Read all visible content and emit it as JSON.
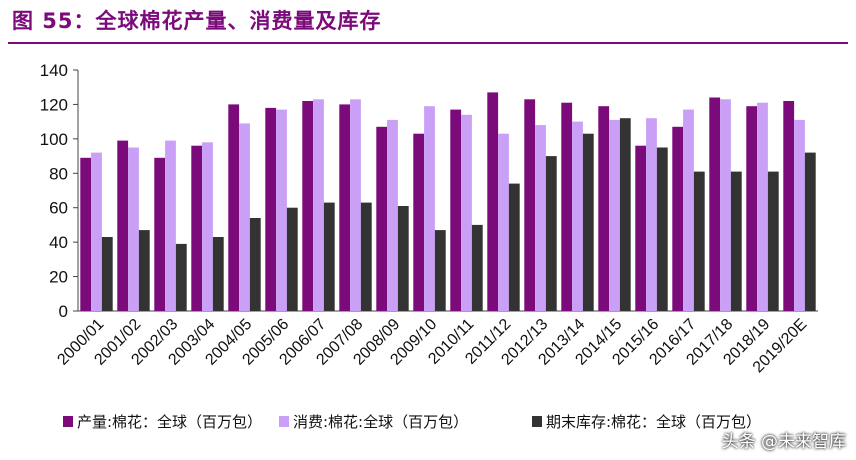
{
  "header": {
    "title": "图 55：全球棉花产量、消费量及库存"
  },
  "chart_data": {
    "type": "bar",
    "categories": [
      "2000/01",
      "2001/02",
      "2002/03",
      "2003/04",
      "2004/05",
      "2005/06",
      "2006/07",
      "2007/08",
      "2008/09",
      "2009/10",
      "2010/11",
      "2011/12",
      "2012/13",
      "2013/14",
      "2014/15",
      "2015/16",
      "2016/17",
      "2017/18",
      "2018/19",
      "2019/20E"
    ],
    "series": [
      {
        "name": "产量:棉花：全球（百万包）",
        "color": "#7b0a7a",
        "values": [
          89,
          99,
          89,
          96,
          120,
          118,
          122,
          120,
          107,
          103,
          117,
          127,
          123,
          121,
          119,
          96,
          107,
          124,
          119,
          122
        ]
      },
      {
        "name": "消费:棉花:全球（百万包）",
        "color": "#c9a0f5",
        "values": [
          92,
          95,
          99,
          98,
          109,
          117,
          123,
          123,
          111,
          119,
          114,
          103,
          108,
          110,
          111,
          112,
          117,
          123,
          121,
          111
        ]
      },
      {
        "name": "期末库存:棉花：全球（百万包）",
        "color": "#333333",
        "values": [
          43,
          47,
          39,
          43,
          54,
          60,
          63,
          63,
          61,
          47,
          50,
          74,
          90,
          103,
          112,
          95,
          81,
          81,
          81,
          92
        ]
      }
    ],
    "ylim": [
      0,
      140
    ],
    "yticks": [
      0,
      20,
      40,
      60,
      80,
      100,
      120,
      140
    ],
    "grid": false,
    "legend_position": "bottom"
  },
  "watermark": "头条 @未来智库"
}
